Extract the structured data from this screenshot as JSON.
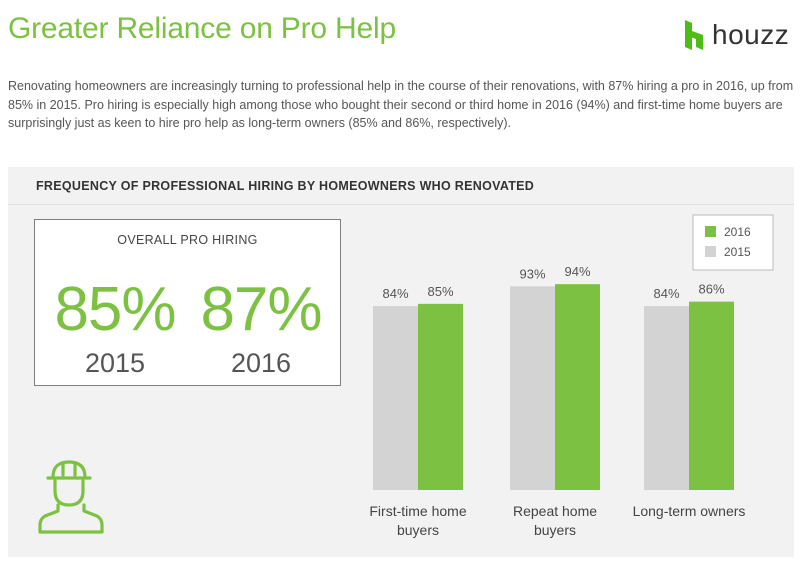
{
  "header": {
    "title": "Greater Reliance on Pro Help",
    "logo_text": "houzz"
  },
  "intro": "Renovating homeowners are increasingly turning to professional help in the course of their renovations, with 87% hiring a pro in 2016, up from 85% in 2015. Pro hiring is especially high among those who bought their second or third home in 2016 (94%) and first-time home buyers are surprisingly just as keen to hire pro help as long-term owners (85% and 86%, respectively).",
  "panel": {
    "title": "FREQUENCY OF PROFESSIONAL HIRING BY HOMEOWNERS WHO RENOVATED"
  },
  "overall": {
    "label": "OVERALL PRO HIRING",
    "stats": [
      {
        "value": "85%",
        "year": "2015"
      },
      {
        "value": "87%",
        "year": "2016"
      }
    ]
  },
  "icons": {
    "worker": "construction-worker-hardhat-icon",
    "logo": "houzz-logo-icon"
  },
  "colors": {
    "accent_green": "#7dc142",
    "bar_2015": "#d3d3d3",
    "bar_2016": "#7dc142",
    "panel_bg": "#f2f2f2"
  },
  "chart_data": {
    "type": "bar",
    "categories": [
      [
        "First-time home",
        "buyers"
      ],
      [
        "Repeat home",
        "buyers"
      ],
      [
        "Long-term owners"
      ]
    ],
    "series": [
      {
        "name": "2015",
        "values": [
          84,
          93,
          84
        ]
      },
      {
        "name": "2016",
        "values": [
          85,
          94,
          86
        ]
      }
    ],
    "value_labels": {
      "2015": [
        "84%",
        "93%",
        "84%"
      ],
      "2016": [
        "85%",
        "94%",
        "86%"
      ]
    },
    "legend": {
      "placement": "top-right",
      "order": [
        "2016",
        "2015"
      ]
    },
    "title": "",
    "xlabel": "",
    "ylabel": "",
    "grid": false
  }
}
